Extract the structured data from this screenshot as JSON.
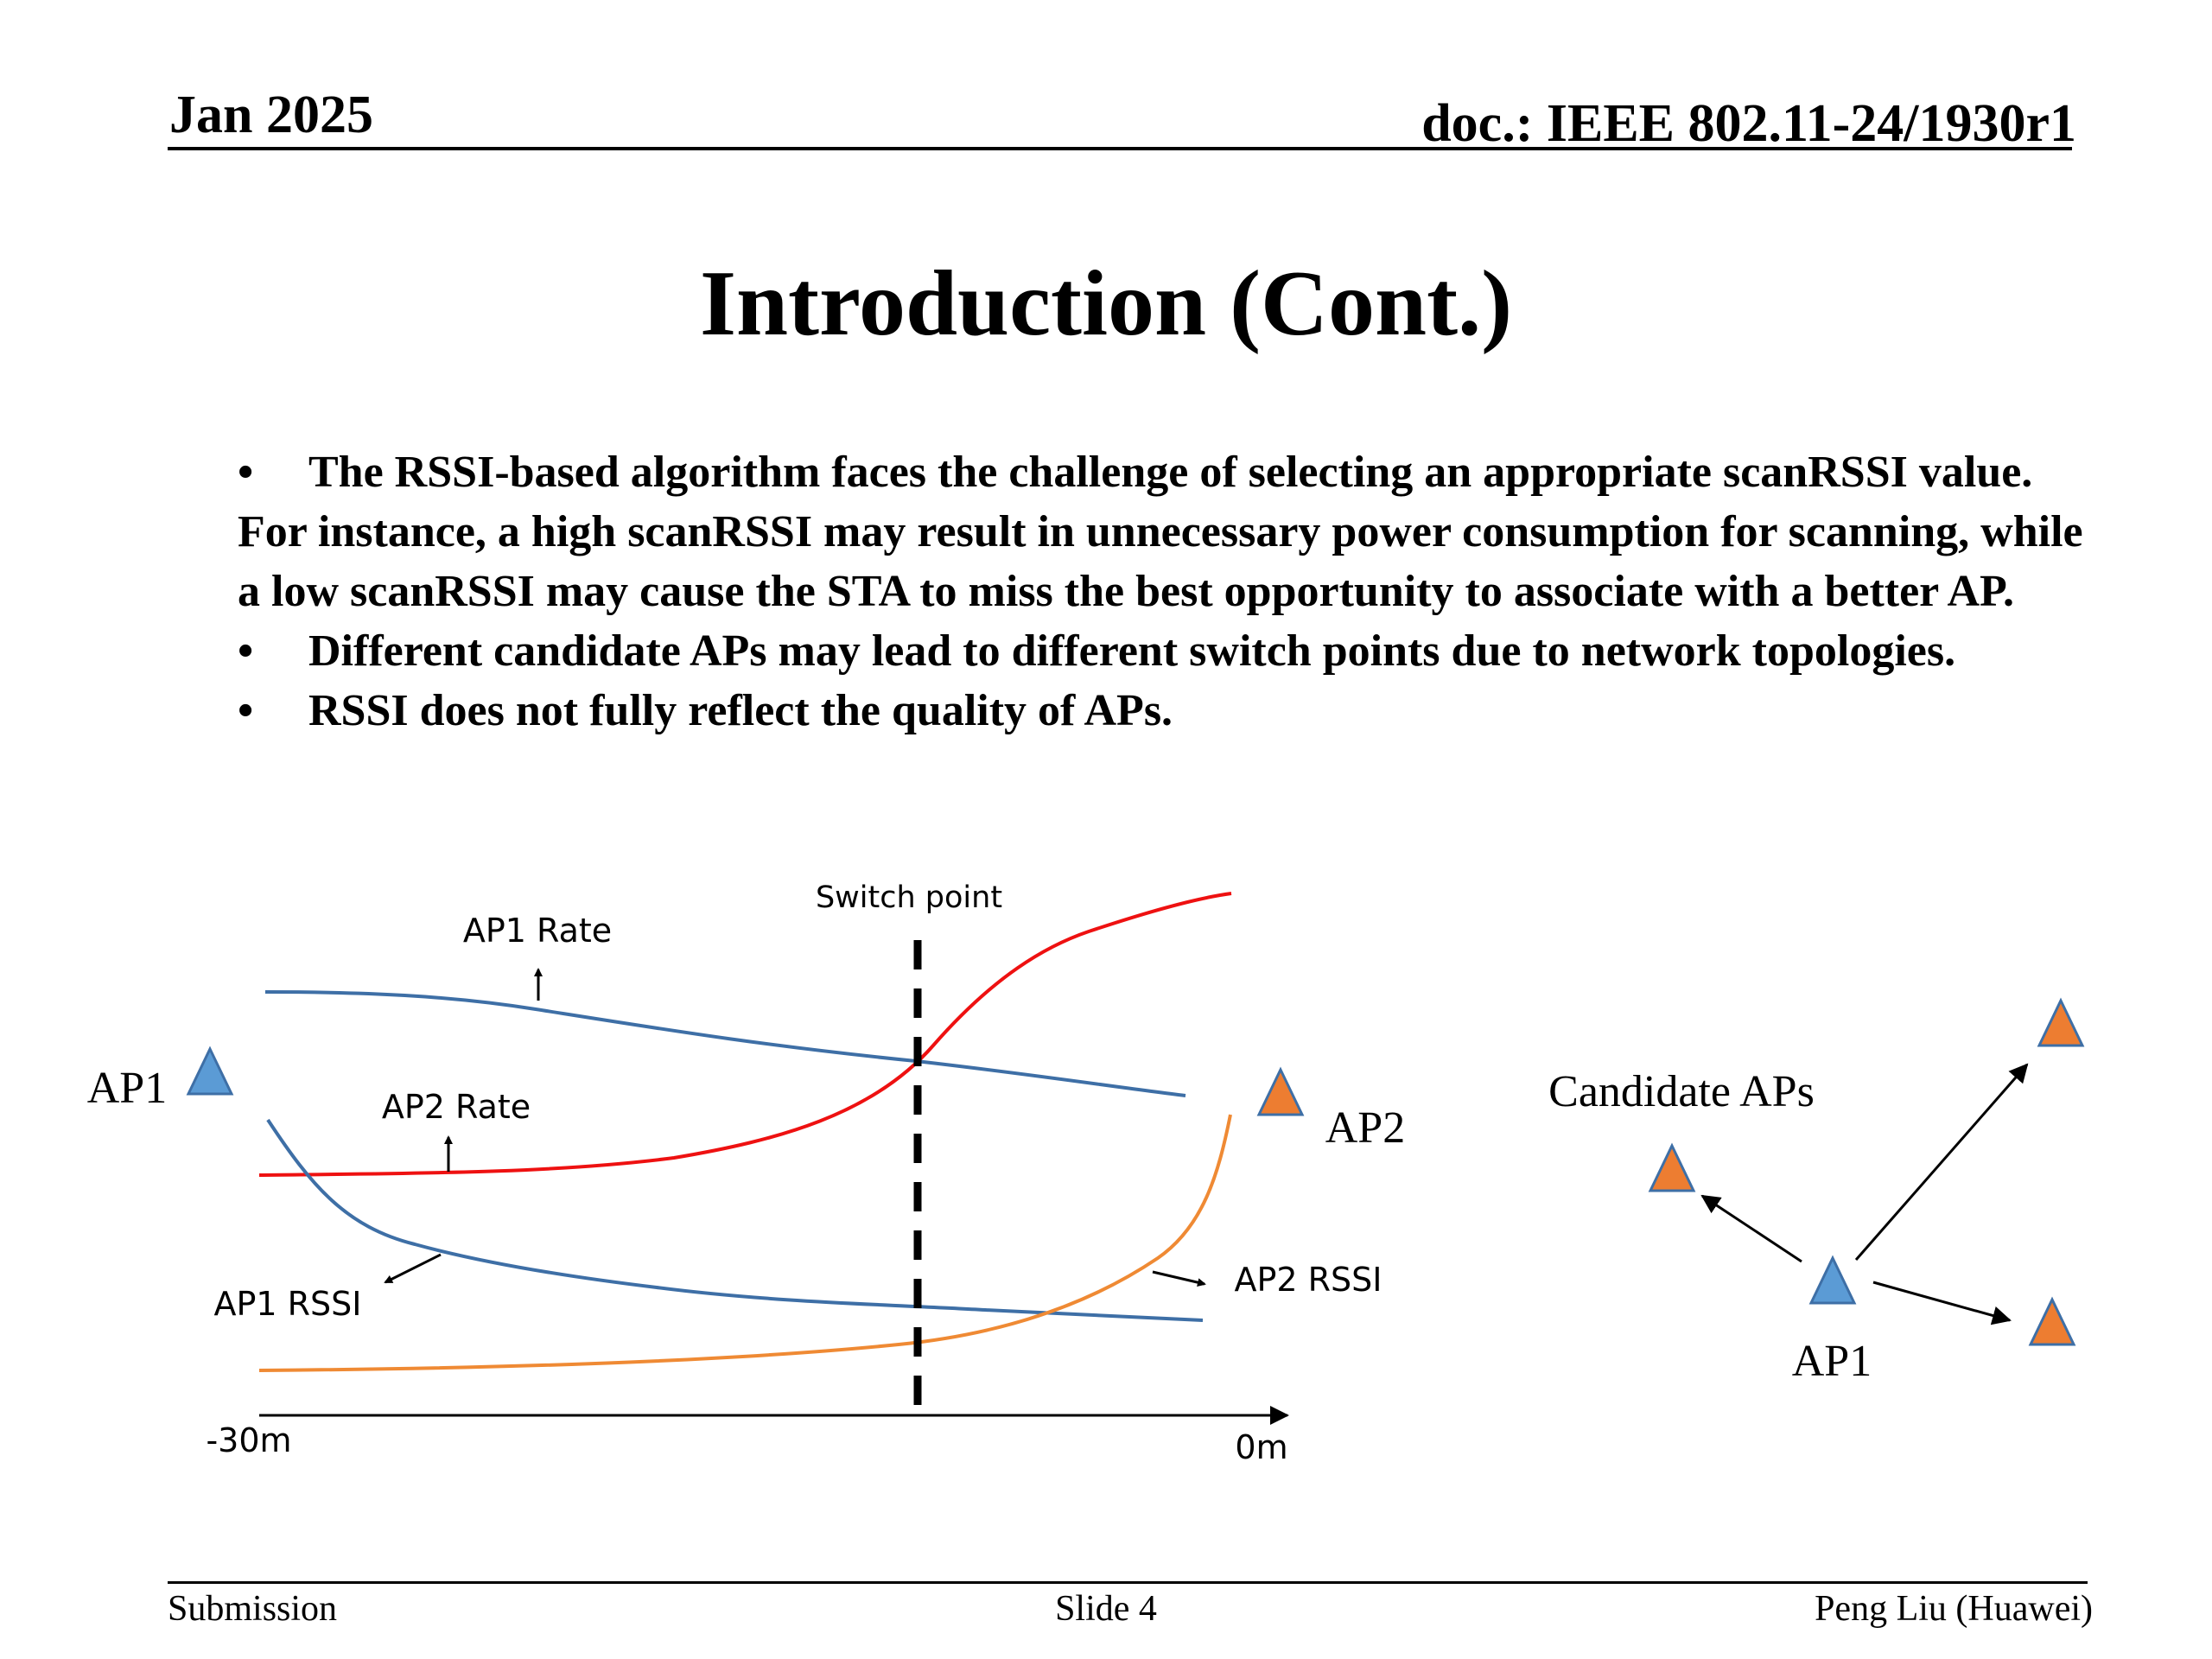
{
  "header": {
    "date": "Jan 2025",
    "doc": "doc.: IEEE 802.11-24/1930r1"
  },
  "title": "Introduction (Cont.)",
  "bullets": [
    "The RSSI-based algorithm faces the challenge of selecting an appropriate scanRSSI value. For instance, a high scanRSSI may result in unnecessary power consumption for scanning, while a low scanRSSI may cause the STA to miss the best opportunity to associate with a better AP.",
    "Different candidate APs may lead to different switch points due to network topologies.",
    "RSSI does not fully reflect the quality of APs."
  ],
  "bullet_mark": "•",
  "diagram": {
    "switch_point": "Switch point",
    "ap1_rate": "AP1 Rate",
    "ap2_rate": "AP2 Rate",
    "ap1_rssi": "AP1 RSSI",
    "ap2_rssi": "AP2 RSSI",
    "ap1": "AP1",
    "ap2": "AP2",
    "x_start": "-30m",
    "x_end": "0m",
    "colors": {
      "ap1": "#3e6fa6",
      "ap2_rate": "#ee1111",
      "ap2_rssi": "#ef8a34",
      "ap1_fill": "#5b9bd5",
      "ap2_fill": "#ed7d31"
    }
  },
  "topology": {
    "candidate_label": "Candidate APs",
    "ap1": "AP1"
  },
  "footer": {
    "left": "Submission",
    "center": "Slide 4",
    "right": "Peng Liu (Huawei)"
  }
}
